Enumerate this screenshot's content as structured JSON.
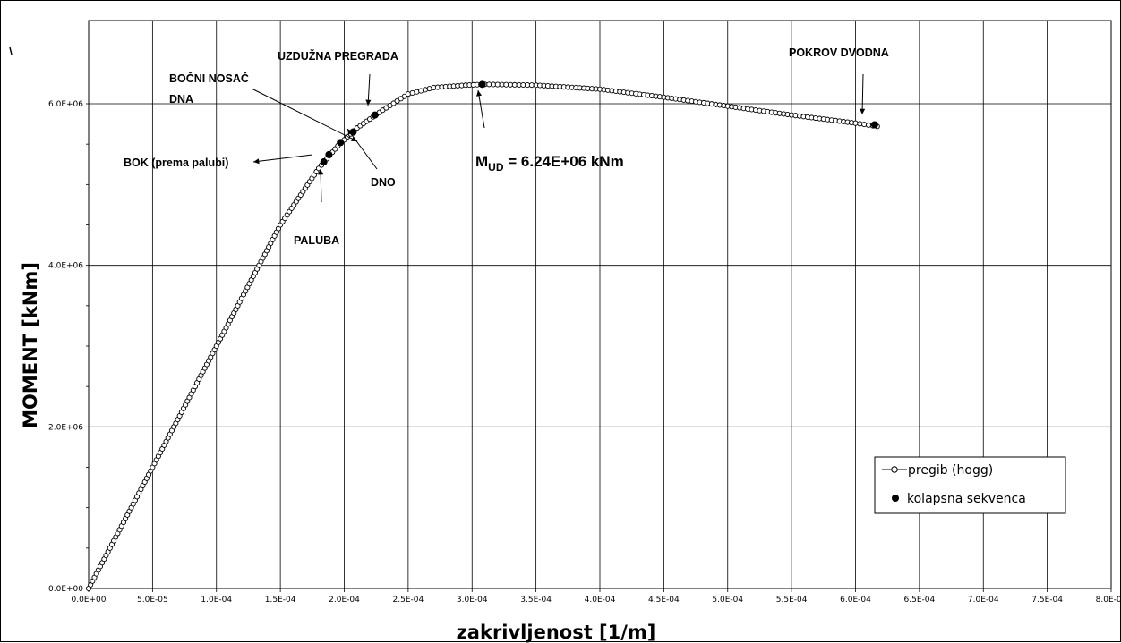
{
  "chart_data": {
    "type": "scatter",
    "title": "",
    "xlabel": "zakrivljenost  [1/m]",
    "ylabel": "MOMENT [kNm]",
    "xlim": [
      0,
      0.0008
    ],
    "ylim": [
      0,
      6000000
    ],
    "grid": true,
    "legend_position": "bottom-right",
    "x_ticks": [
      0,
      5e-05,
      0.0001,
      0.00015,
      0.0002,
      0.00025,
      0.0003,
      0.00035,
      0.0004,
      0.00045,
      0.0005,
      0.00055,
      0.0006,
      0.00065,
      0.0007,
      0.00075,
      0.0008
    ],
    "x_tick_labels": [
      "0.0E+00",
      "5.0E-05",
      "1.0E-04",
      "1.5E-04",
      "2.0E-04",
      "2.5E-04",
      "3.0E-04",
      "3.5E-04",
      "4.0E-04",
      "4.5E-04",
      "5.0E-04",
      "5.5E-04",
      "6.0E-04",
      "6.5E-04",
      "7.0E-04",
      "7.5E-04",
      "8.0E-04"
    ],
    "y_ticks": [
      0,
      2000000,
      4000000,
      6000000
    ],
    "y_tick_labels": [
      "0.0E+00",
      "2.0E+06",
      "4.0E+06",
      "6.0E+06"
    ],
    "series": [
      {
        "name": "pregib (hogg)",
        "marker": "open-circle",
        "line": true,
        "color": "#000000",
        "x": [
          0,
          5e-05,
          0.0001,
          0.00015,
          0.00018,
          0.000195,
          0.00021,
          0.00023,
          0.00025,
          0.00027,
          0.000295,
          0.00031,
          0.00035,
          0.0004,
          0.00045,
          0.0005,
          0.00055,
          0.0006,
          0.000617
        ],
        "y": [
          0,
          1500000,
          3000000,
          4500000,
          5200000,
          5480000,
          5700000,
          5920000,
          6120000,
          6200000,
          6230000,
          6240000,
          6230000,
          6180000,
          6080000,
          5970000,
          5860000,
          5760000,
          5720000
        ]
      },
      {
        "name": "kolapsna sekvenca",
        "marker": "filled-circle",
        "line": false,
        "color": "#000000",
        "x": [
          0.000184,
          0.000188,
          0.000197,
          0.000207,
          0.000224,
          0.000308,
          0.000615
        ],
        "y": [
          5280000,
          5370000,
          5520000,
          5650000,
          5860000,
          6240000,
          5740000
        ]
      }
    ],
    "annotations": {
      "uzduzna": "UZDUŽNA PREGRADA",
      "bocni_line1": "BOČNI NOSAČ",
      "bocni_line2": "DNA",
      "bok": "BOK (prema palubi)",
      "dno": "DNO",
      "paluba": "PALUBA",
      "pokrov": "POKROV DVODNA",
      "mud_symbol": "M",
      "mud_sub": "UD",
      "mud_value": " =  6.24E+06 kNm"
    }
  }
}
